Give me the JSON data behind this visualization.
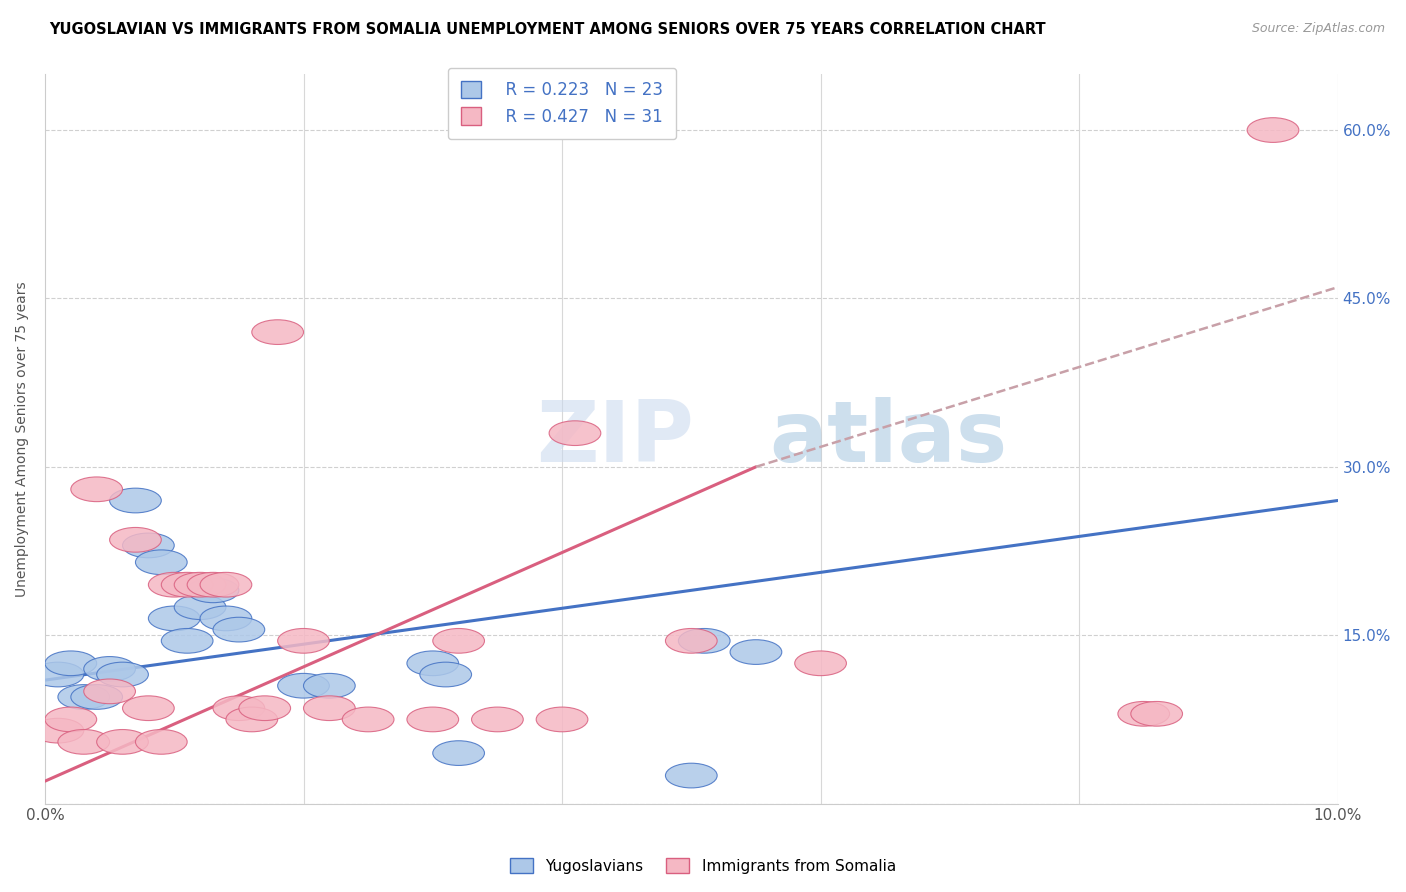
{
  "title": "YUGOSLAVIAN VS IMMIGRANTS FROM SOMALIA UNEMPLOYMENT AMONG SENIORS OVER 75 YEARS CORRELATION CHART",
  "source": "Source: ZipAtlas.com",
  "ylabel": "Unemployment Among Seniors over 75 years",
  "xlim": [
    0.0,
    0.1
  ],
  "ylim": [
    0.0,
    0.65
  ],
  "x_ticks": [
    0.0,
    0.02,
    0.04,
    0.06,
    0.08,
    0.1
  ],
  "x_tick_labels": [
    "0.0%",
    "",
    "",
    "",
    "",
    "10.0%"
  ],
  "y_ticks": [
    0.0,
    0.15,
    0.3,
    0.45,
    0.6
  ],
  "y_tick_labels_right": [
    "",
    "15.0%",
    "30.0%",
    "45.0%",
    "60.0%"
  ],
  "legend_r1": "R = 0.223",
  "legend_n1": "N = 23",
  "legend_r2": "R = 0.427",
  "legend_n2": "N = 31",
  "color_yug": "#adc8e8",
  "color_som": "#f5b8c4",
  "line_color_yug": "#4472c4",
  "line_color_som": "#d95f7f",
  "line_color_ext": "#c8a0a8",
  "watermark_zip": "ZIP",
  "watermark_atlas": "atlas",
  "yug_scatter_x": [
    0.001,
    0.002,
    0.003,
    0.004,
    0.005,
    0.006,
    0.007,
    0.008,
    0.009,
    0.01,
    0.011,
    0.012,
    0.013,
    0.014,
    0.015,
    0.02,
    0.022,
    0.03,
    0.031,
    0.032,
    0.05,
    0.051,
    0.055
  ],
  "yug_scatter_y": [
    0.115,
    0.125,
    0.095,
    0.095,
    0.12,
    0.115,
    0.27,
    0.23,
    0.215,
    0.165,
    0.145,
    0.175,
    0.19,
    0.165,
    0.155,
    0.105,
    0.105,
    0.125,
    0.115,
    0.045,
    0.025,
    0.145,
    0.135
  ],
  "som_scatter_x": [
    0.001,
    0.002,
    0.003,
    0.004,
    0.005,
    0.006,
    0.007,
    0.008,
    0.009,
    0.01,
    0.011,
    0.012,
    0.013,
    0.014,
    0.015,
    0.016,
    0.017,
    0.018,
    0.02,
    0.022,
    0.025,
    0.03,
    0.032,
    0.035,
    0.04,
    0.041,
    0.05,
    0.06,
    0.085,
    0.086,
    0.095
  ],
  "som_scatter_y": [
    0.065,
    0.075,
    0.055,
    0.28,
    0.1,
    0.055,
    0.235,
    0.085,
    0.055,
    0.195,
    0.195,
    0.195,
    0.195,
    0.195,
    0.085,
    0.075,
    0.085,
    0.42,
    0.145,
    0.085,
    0.075,
    0.075,
    0.145,
    0.075,
    0.075,
    0.33,
    0.145,
    0.125,
    0.08,
    0.08,
    0.6
  ],
  "yug_line_x": [
    0.0,
    0.1
  ],
  "yug_line_y": [
    0.11,
    0.27
  ],
  "som_line_x": [
    0.0,
    0.055
  ],
  "som_line_y": [
    0.02,
    0.3
  ],
  "ext_line_x": [
    0.055,
    0.1
  ],
  "ext_line_y": [
    0.3,
    0.46
  ],
  "bottom_legend_labels": [
    "Yugoslavians",
    "Immigrants from Somalia"
  ]
}
